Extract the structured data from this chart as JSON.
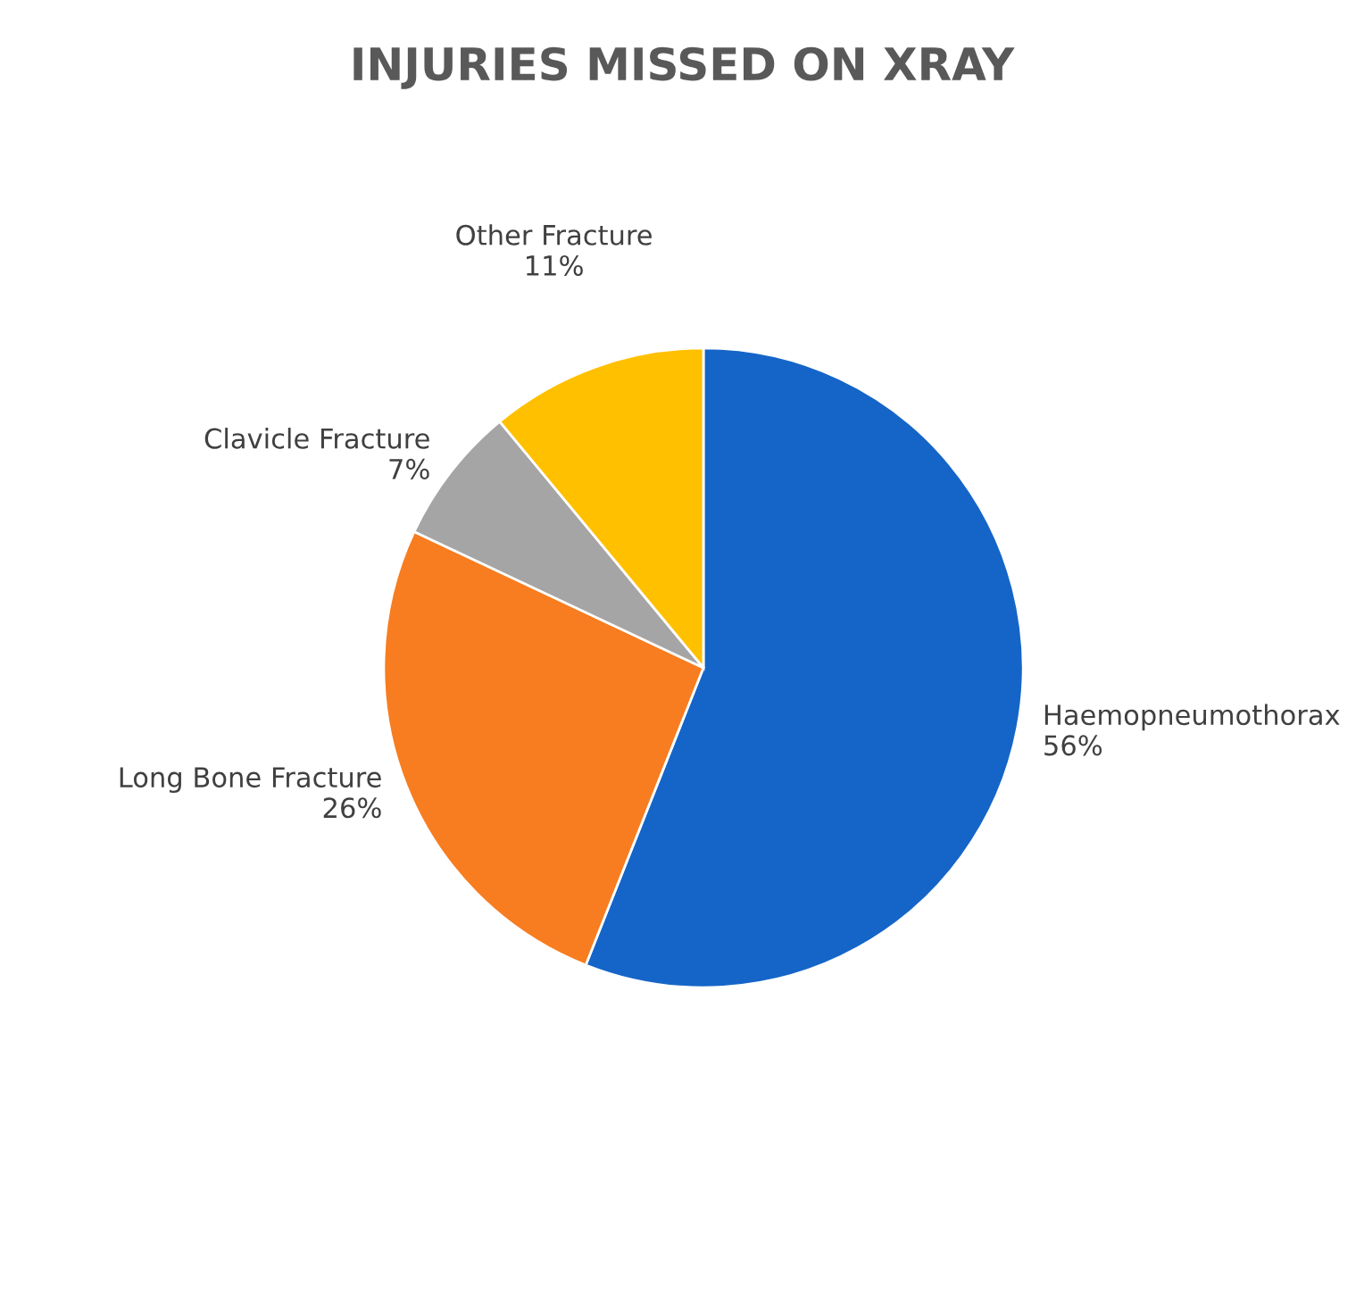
{
  "chart_data": {
    "type": "pie",
    "title": "INJURIES MISSED ON XRAY",
    "categories": [
      "Haemopneumothorax",
      "Long Bone Fracture",
      "Clavicle Fracture",
      "Other Fracture"
    ],
    "values": [
      56,
      26,
      7,
      11
    ],
    "value_labels": [
      "56%",
      "26%",
      "7%",
      "11%"
    ],
    "colors": [
      "#1565c8",
      "#f77d20",
      "#a5a5a5",
      "#ffc000"
    ],
    "legend": false
  }
}
